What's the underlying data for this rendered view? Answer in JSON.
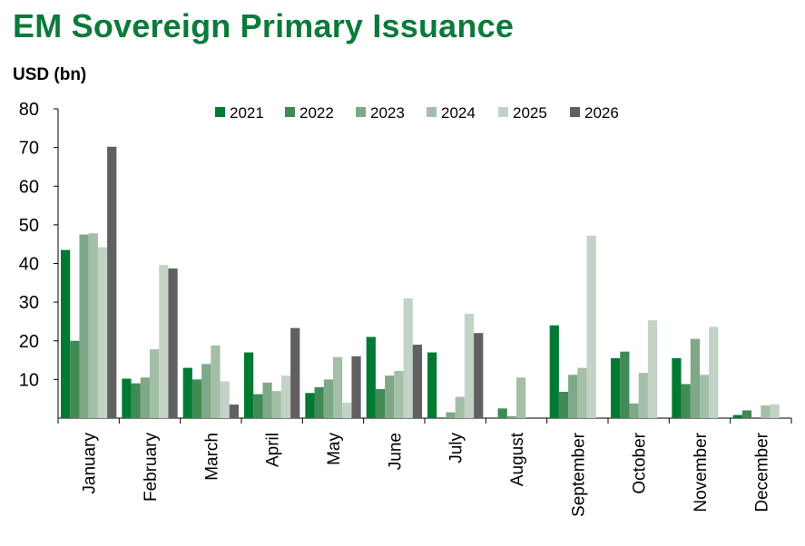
{
  "chart_data": {
    "type": "bar",
    "title": "EM Sovereign Primary Issuance",
    "ylabel": "USD (bn)",
    "xlabel": "",
    "ylim": [
      0,
      80
    ],
    "yticks": [
      10,
      20,
      30,
      40,
      50,
      60,
      70,
      80
    ],
    "grid": false,
    "legend_position": "top",
    "categories": [
      "January",
      "February",
      "March",
      "April",
      "May",
      "June",
      "July",
      "August",
      "September",
      "October",
      "November",
      "December"
    ],
    "series": [
      {
        "name": "2021",
        "color": "#007a33",
        "values": [
          43.5,
          10.2,
          13.0,
          17.0,
          6.5,
          21.0,
          17.0,
          0,
          24.0,
          15.5,
          15.5,
          0.8
        ]
      },
      {
        "name": "2022",
        "color": "#3f8a55",
        "values": [
          20.0,
          9.0,
          10.0,
          6.2,
          8.0,
          7.5,
          0,
          2.5,
          6.8,
          17.2,
          8.8,
          2.0
        ]
      },
      {
        "name": "2023",
        "color": "#7ea888",
        "values": [
          47.5,
          10.5,
          14.0,
          9.2,
          10.0,
          11.0,
          1.5,
          0.5,
          11.2,
          3.8,
          20.5,
          0
        ]
      },
      {
        "name": "2024",
        "color": "#a3bfa8",
        "values": [
          47.8,
          17.8,
          18.8,
          7.0,
          15.8,
          12.2,
          5.5,
          10.5,
          13.0,
          11.7,
          11.2,
          3.3
        ]
      },
      {
        "name": "2025",
        "color": "#c2d3c6",
        "values": [
          44.2,
          39.6,
          9.5,
          11.0,
          4.0,
          31.0,
          27.0,
          0,
          47.2,
          25.3,
          23.6,
          3.6
        ]
      },
      {
        "name": "2026",
        "color": "#606060",
        "values": [
          70.2,
          38.7,
          3.5,
          23.3,
          16.0,
          19.0,
          22.0,
          0,
          0,
          0,
          0,
          0
        ]
      }
    ]
  }
}
